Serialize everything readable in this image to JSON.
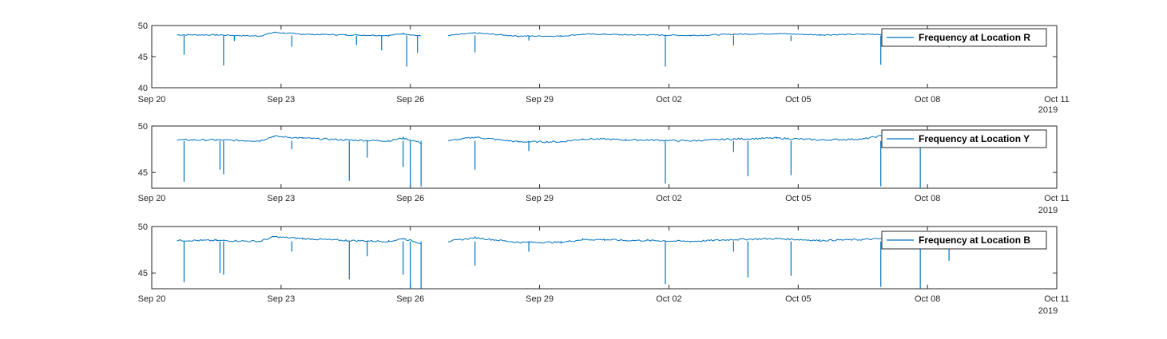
{
  "colors": {
    "series": "#0072BD",
    "axes": "#262626",
    "background": "#ffffff"
  },
  "chart_data": [
    {
      "type": "line",
      "title": "",
      "xlabel": "",
      "ylabel": "",
      "legend": "top-right",
      "grid": false,
      "xlim": [
        "2019-09-20",
        "2019-10-11"
      ],
      "ylim": [
        40,
        50
      ],
      "xticks": [
        "Sep 20",
        "Sep 23",
        "Sep 26",
        "Sep 29",
        "Oct 02",
        "Oct 05",
        "Oct 08",
        "Oct 11"
      ],
      "yticks": [
        "40",
        "45",
        "50"
      ],
      "year_label": "2019",
      "series": [
        {
          "name": "Frequency at Location R",
          "baseline": [
            [
              "2019-09-20 14:00",
              48.5
            ],
            [
              "2019-09-21 12:00",
              48.5
            ],
            [
              "2019-09-22 12:00",
              48.3
            ],
            [
              "2019-09-22 20:00",
              48.9
            ],
            [
              "2019-09-23 12:00",
              48.6
            ],
            [
              "2019-09-24 12:00",
              48.5
            ],
            [
              "2019-09-25 12:00",
              48.4
            ],
            [
              "2019-09-25 20:00",
              48.7
            ],
            [
              "2019-09-26 06:00",
              48.3
            ],
            [
              "gap",
              null
            ],
            [
              "2019-09-26 21:00",
              48.4
            ],
            [
              "2019-09-27 12:00",
              48.8
            ],
            [
              "2019-09-28 12:00",
              48.3
            ],
            [
              "2019-09-29 12:00",
              48.3
            ],
            [
              "2019-09-30 00:00",
              48.6
            ],
            [
              "2019-09-30 12:00",
              48.6
            ],
            [
              "2019-10-01 00:00",
              48.5
            ],
            [
              "2019-10-01 12:00",
              48.5
            ],
            [
              "2019-10-02 12:00",
              48.4
            ],
            [
              "2019-10-03 12:00",
              48.6
            ],
            [
              "2019-10-04 12:00",
              48.7
            ],
            [
              "2019-10-05 12:00",
              48.5
            ],
            [
              "2019-10-06 12:00",
              48.6
            ],
            [
              "2019-10-07 00:00",
              48.6
            ],
            [
              "2019-10-07 12:00",
              48.5
            ],
            [
              "2019-10-08 12:00",
              48.4
            ]
          ],
          "dips": [
            [
              "2019-09-20 18:00",
              45.3
            ],
            [
              "2019-09-21 16:00",
              43.6
            ],
            [
              "2019-09-21 22:00",
              47.5
            ],
            [
              "2019-09-23 06:00",
              46.6
            ],
            [
              "2019-09-24 18:00",
              46.9
            ],
            [
              "2019-09-25 08:00",
              46.0
            ],
            [
              "2019-09-25 22:00",
              43.4
            ],
            [
              "2019-09-26 04:00",
              45.6
            ],
            [
              "2019-09-27 12:00",
              45.7
            ],
            [
              "2019-09-28 18:00",
              47.6
            ],
            [
              "2019-10-01 22:00",
              43.4
            ],
            [
              "2019-10-03 12:00",
              46.8
            ],
            [
              "2019-10-04 20:00",
              47.5
            ],
            [
              "2019-10-06 22:00",
              43.7
            ],
            [
              "2019-10-08 12:00",
              46.5
            ]
          ]
        },
        {
          "name": "Frequency at Location Y",
          "baseline": [
            [
              "2019-09-20 14:00",
              48.5
            ],
            [
              "2019-09-21 12:00",
              48.5
            ],
            [
              "2019-09-22 12:00",
              48.4
            ],
            [
              "2019-09-22 20:00",
              48.9
            ],
            [
              "2019-09-23 12:00",
              48.7
            ],
            [
              "2019-09-24 12:00",
              48.5
            ],
            [
              "2019-09-25 12:00",
              48.4
            ],
            [
              "2019-09-25 20:00",
              48.7
            ],
            [
              "2019-09-26 06:00",
              48.2
            ],
            [
              "gap",
              null
            ],
            [
              "2019-09-26 21:00",
              48.4
            ],
            [
              "2019-09-27 12:00",
              48.8
            ],
            [
              "2019-09-28 12:00",
              48.3
            ],
            [
              "2019-09-29 12:00",
              48.3
            ],
            [
              "2019-09-30 00:00",
              48.6
            ],
            [
              "2019-09-30 12:00",
              48.6
            ],
            [
              "2019-10-01 00:00",
              48.5
            ],
            [
              "2019-10-01 12:00",
              48.5
            ],
            [
              "2019-10-02 12:00",
              48.4
            ],
            [
              "2019-10-03 12:00",
              48.6
            ],
            [
              "2019-10-04 12:00",
              48.7
            ],
            [
              "2019-10-05 12:00",
              48.5
            ],
            [
              "2019-10-06 12:00",
              48.6
            ],
            [
              "2019-10-07 00:00",
              49.0
            ],
            [
              "2019-10-07 12:00",
              48.5
            ],
            [
              "2019-10-08 12:00",
              48.4
            ]
          ],
          "dips": [
            [
              "2019-09-20 18:00",
              44.0
            ],
            [
              "2019-09-21 14:00",
              45.3
            ],
            [
              "2019-09-21 16:00",
              44.8
            ],
            [
              "2019-09-23 06:00",
              47.5
            ],
            [
              "2019-09-24 14:00",
              44.1
            ],
            [
              "2019-09-25 00:00",
              46.6
            ],
            [
              "2019-09-25 20:00",
              45.6
            ],
            [
              "2019-09-26 00:00",
              43.3
            ],
            [
              "2019-09-26 06:00",
              43.5
            ],
            [
              "2019-09-27 12:00",
              45.3
            ],
            [
              "2019-09-28 18:00",
              47.3
            ],
            [
              "2019-10-01 22:00",
              43.8
            ],
            [
              "2019-10-03 12:00",
              47.2
            ],
            [
              "2019-10-03 20:00",
              44.6
            ],
            [
              "2019-10-04 20:00",
              44.7
            ],
            [
              "2019-10-06 22:00",
              43.5
            ],
            [
              "2019-10-07 20:00",
              43.3
            ]
          ]
        },
        {
          "name": "Frequency at Location B",
          "baseline": [
            [
              "2019-09-20 14:00",
              48.5
            ],
            [
              "2019-09-21 12:00",
              48.5
            ],
            [
              "2019-09-22 12:00",
              48.4
            ],
            [
              "2019-09-22 20:00",
              48.9
            ],
            [
              "2019-09-23 12:00",
              48.7
            ],
            [
              "2019-09-24 12:00",
              48.5
            ],
            [
              "2019-09-25 12:00",
              48.4
            ],
            [
              "2019-09-25 20:00",
              48.7
            ],
            [
              "2019-09-26 06:00",
              48.2
            ],
            [
              "gap",
              null
            ],
            [
              "2019-09-26 21:00",
              48.4
            ],
            [
              "2019-09-27 12:00",
              48.8
            ],
            [
              "2019-09-28 12:00",
              48.3
            ],
            [
              "2019-09-29 12:00",
              48.3
            ],
            [
              "2019-09-30 00:00",
              48.6
            ],
            [
              "2019-09-30 12:00",
              48.6
            ],
            [
              "2019-10-01 00:00",
              48.5
            ],
            [
              "2019-10-01 12:00",
              48.5
            ],
            [
              "2019-10-02 12:00",
              48.4
            ],
            [
              "2019-10-03 12:00",
              48.6
            ],
            [
              "2019-10-04 12:00",
              48.7
            ],
            [
              "2019-10-05 12:00",
              48.5
            ],
            [
              "2019-10-06 12:00",
              48.6
            ],
            [
              "2019-10-07 00:00",
              48.7
            ],
            [
              "2019-10-07 12:00",
              48.5
            ],
            [
              "2019-10-08 12:00",
              48.4
            ]
          ],
          "dips": [
            [
              "2019-09-20 18:00",
              44.0
            ],
            [
              "2019-09-21 14:00",
              45.0
            ],
            [
              "2019-09-21 16:00",
              44.8
            ],
            [
              "2019-09-23 06:00",
              47.3
            ],
            [
              "2019-09-24 14:00",
              44.3
            ],
            [
              "2019-09-25 00:00",
              46.8
            ],
            [
              "2019-09-25 20:00",
              44.8
            ],
            [
              "2019-09-26 00:00",
              43.3
            ],
            [
              "2019-09-26 06:00",
              43.3
            ],
            [
              "2019-09-27 12:00",
              45.8
            ],
            [
              "2019-09-28 18:00",
              47.3
            ],
            [
              "2019-10-01 22:00",
              43.8
            ],
            [
              "2019-10-03 12:00",
              47.3
            ],
            [
              "2019-10-03 20:00",
              44.5
            ],
            [
              "2019-10-04 20:00",
              44.7
            ],
            [
              "2019-10-06 22:00",
              43.5
            ],
            [
              "2019-10-07 20:00",
              43.3
            ],
            [
              "2019-10-08 12:00",
              46.3
            ]
          ]
        }
      ]
    },
    {
      "type": "line",
      "title": "",
      "xlabel": "",
      "ylabel": "",
      "legend": "top-right",
      "grid": false,
      "xlim": [
        "2019-09-20",
        "2019-10-11"
      ],
      "ylim": [
        43.3,
        50
      ],
      "xticks": [
        "Sep 20",
        "Sep 23",
        "Sep 26",
        "Sep 29",
        "Oct 02",
        "Oct 05",
        "Oct 08",
        "Oct 11"
      ],
      "yticks": [
        "45",
        "50"
      ],
      "year_label": "2019"
    },
    {
      "type": "line",
      "title": "",
      "xlabel": "",
      "ylabel": "",
      "legend": "top-right",
      "grid": false,
      "xlim": [
        "2019-09-20",
        "2019-10-11"
      ],
      "ylim": [
        43.3,
        50
      ],
      "xticks": [
        "Sep 20",
        "Sep 23",
        "Sep 26",
        "Sep 29",
        "Oct 02",
        "Oct 05",
        "Oct 08",
        "Oct 11"
      ],
      "yticks": [
        "45",
        "50"
      ],
      "year_label": "2019"
    }
  ]
}
